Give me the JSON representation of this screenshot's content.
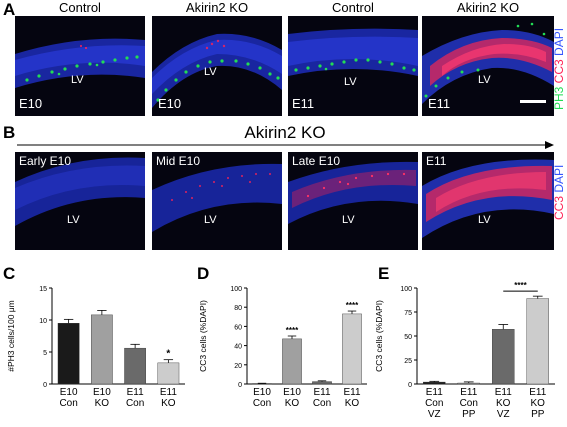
{
  "panelA": {
    "letter": "A",
    "titles": [
      "Control",
      "Akirin2 KO",
      "Control",
      "Akirin2 KO"
    ],
    "ages": [
      "E10",
      "E10",
      "E11",
      "E11"
    ],
    "ventricle": "LV",
    "legend": {
      "ph3": "PH3",
      "cc3": "CC3",
      "dapi": "DAPI"
    }
  },
  "panelB": {
    "letter": "B",
    "title": "Akirin2 KO",
    "stages": [
      "Early E10",
      "Mid E10",
      "Late E10",
      "E11"
    ],
    "ventricle": "LV",
    "legend": {
      "cc3": "CC3",
      "dapi": "DAPI"
    }
  },
  "colors": {
    "ph3": "#22dd55",
    "cc3": "#ff2255",
    "dapi": "#2255ff"
  },
  "chart_data": [
    {
      "letter": "C",
      "type": "bar",
      "ylabel": "#PH3 cells/100 μm",
      "ylim": [
        0,
        15
      ],
      "yticks": [
        "0",
        "5",
        "10",
        "15"
      ],
      "categories": [
        [
          "E10",
          "Con"
        ],
        [
          "E10",
          "KO"
        ],
        [
          "E11",
          "Con"
        ],
        [
          "E11",
          "KO"
        ]
      ],
      "values": [
        9.5,
        10.8,
        5.6,
        3.3
      ],
      "errors": [
        0.6,
        0.7,
        0.6,
        0.5
      ],
      "annotations": [
        "",
        "",
        "",
        "*"
      ],
      "fills": [
        "#1a1a1a",
        "#a0a0a0",
        "#6a6a6a",
        "#cccccc"
      ]
    },
    {
      "letter": "D",
      "type": "bar",
      "ylabel": "CC3 cells (%DAPI)",
      "ylim": [
        0,
        100
      ],
      "yticks": [
        "0",
        "20",
        "40",
        "60",
        "80",
        "100"
      ],
      "categories": [
        [
          "E10",
          "Con"
        ],
        [
          "E10",
          "KO"
        ],
        [
          "E11",
          "Con"
        ],
        [
          "E11",
          "KO"
        ]
      ],
      "values": [
        0.5,
        47,
        2.5,
        73
      ],
      "errors": [
        0.3,
        3,
        0.8,
        3
      ],
      "annotations": [
        "",
        "****",
        "",
        "****"
      ],
      "fills": [
        "#1a1a1a",
        "#a0a0a0",
        "#6a6a6a",
        "#cccccc"
      ]
    },
    {
      "letter": "E",
      "type": "bar",
      "ylabel": "CC3 cells (%DAPI)",
      "ylim": [
        0,
        100
      ],
      "yticks": [
        "0",
        "25",
        "50",
        "75",
        "100"
      ],
      "categories": [
        [
          "E11",
          "Con",
          "VZ"
        ],
        [
          "E11",
          "Con",
          "PP"
        ],
        [
          "E11",
          "KO",
          "VZ"
        ],
        [
          "E11",
          "KO",
          "PP"
        ]
      ],
      "values": [
        2,
        1,
        57,
        89
      ],
      "errors": [
        0.8,
        1.2,
        5,
        2.5
      ],
      "annotations": [],
      "significance": {
        "label": "****",
        "from": 2,
        "to": 3
      },
      "fills": [
        "#1a1a1a",
        "#a0a0a0",
        "#6a6a6a",
        "#cccccc"
      ]
    }
  ]
}
